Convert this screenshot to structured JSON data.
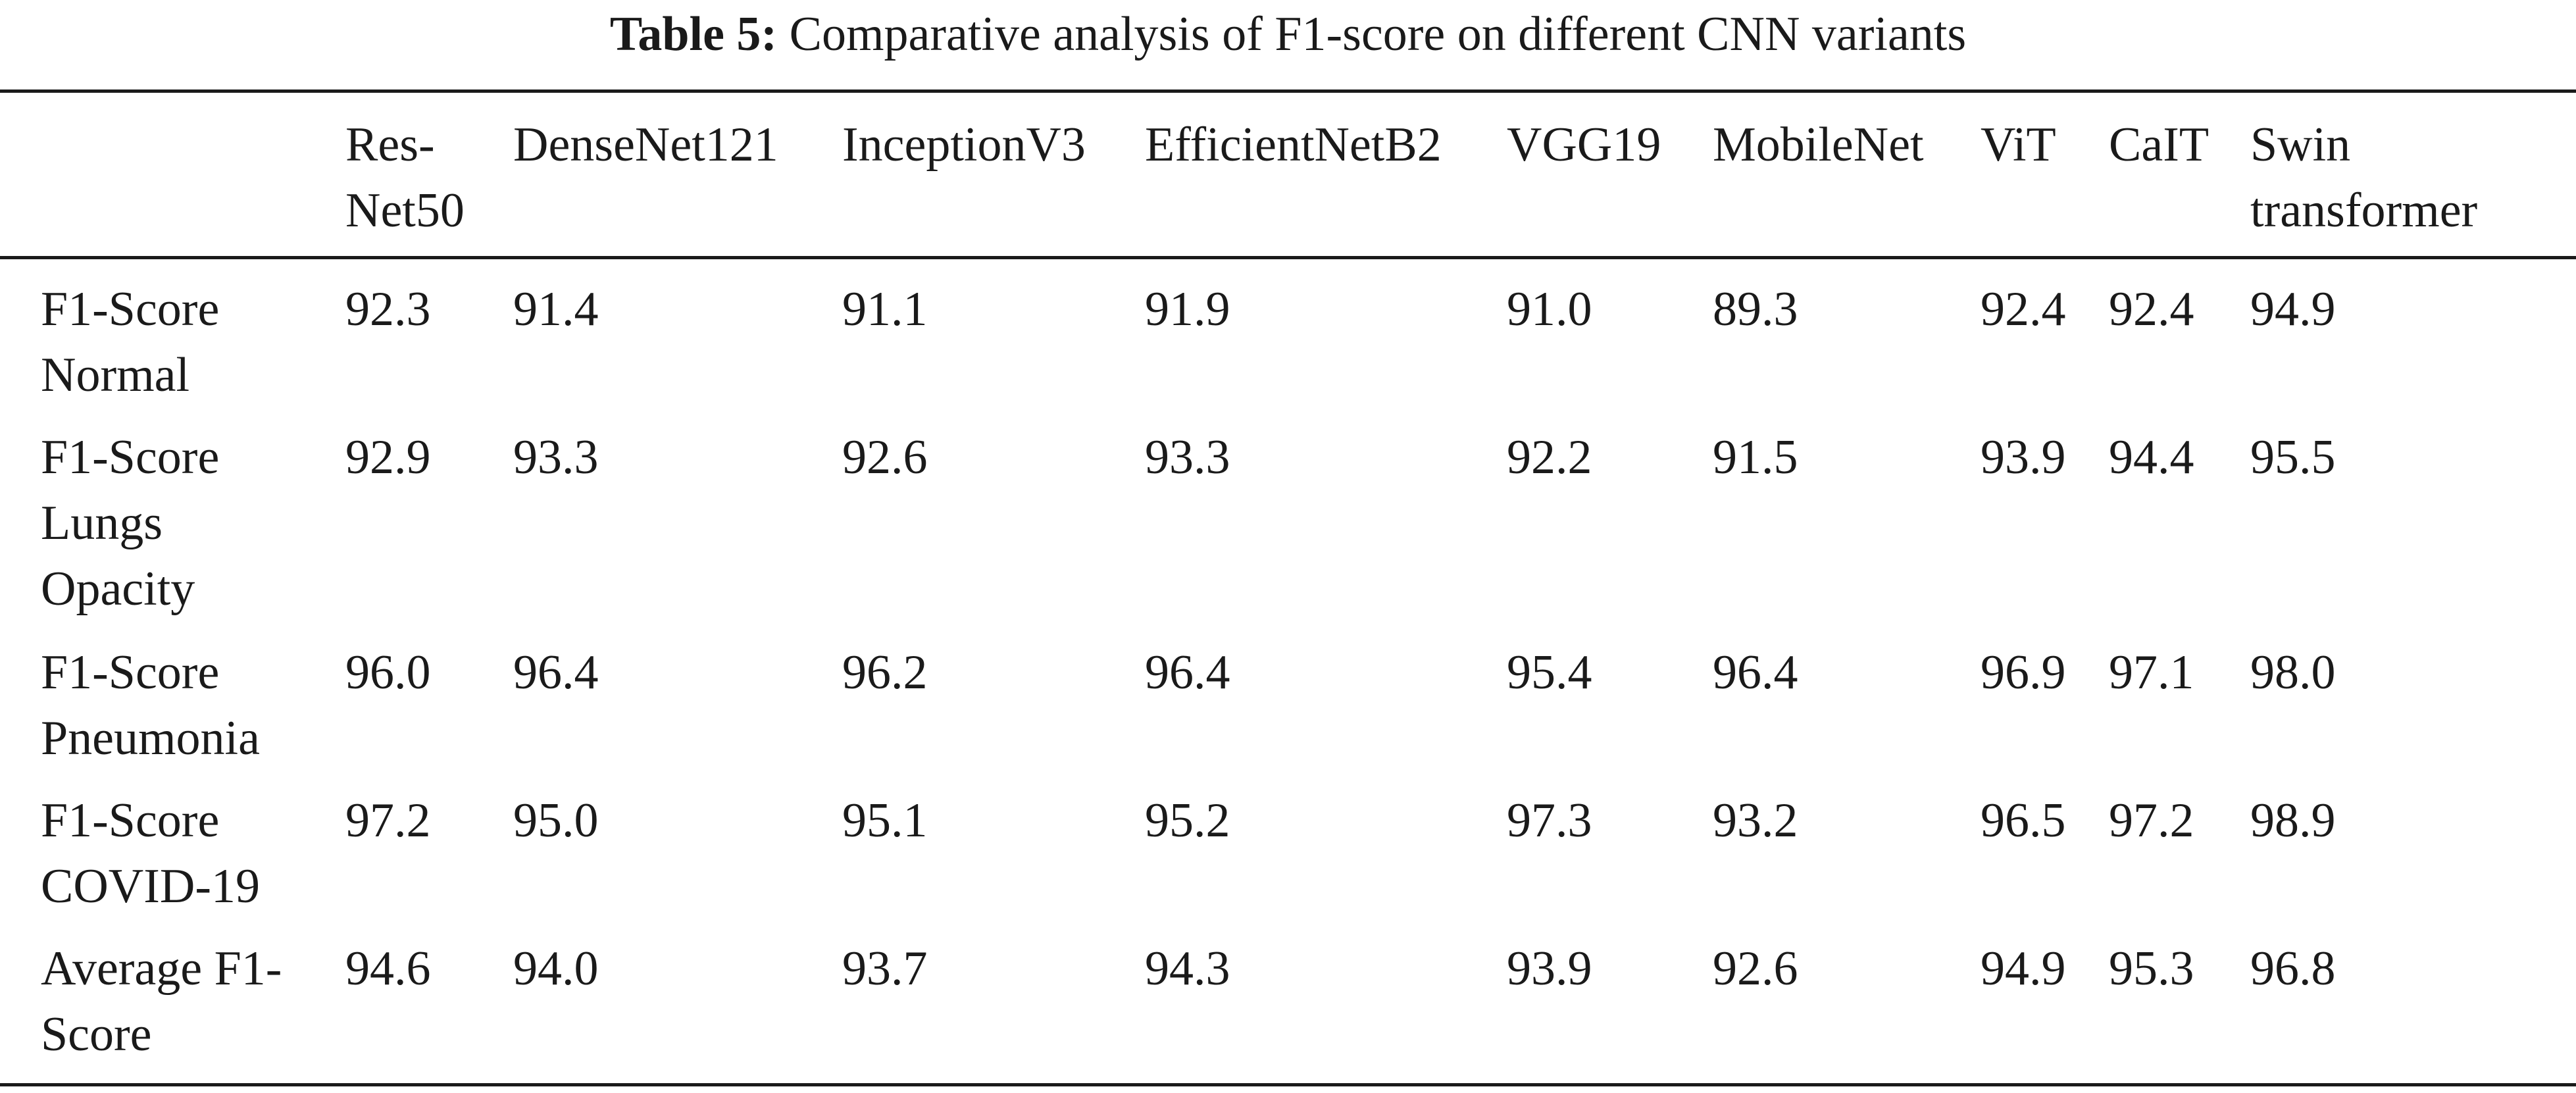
{
  "caption": {
    "label": "Table 5:",
    "text": " Comparative analysis of F1-score on different CNN variants"
  },
  "table": {
    "headers": [
      [],
      [
        "Res-",
        "Net50"
      ],
      [
        "DenseNet121"
      ],
      [
        "InceptionV3"
      ],
      [
        "EfficientNetB2"
      ],
      [
        "VGG19"
      ],
      [
        "MobileNet"
      ],
      [
        "ViT"
      ],
      [
        "CaIT"
      ],
      [
        "Swin",
        "transformer"
      ]
    ],
    "rows": [
      {
        "label": [
          "F1-Score",
          "Normal"
        ],
        "values": [
          "92.3",
          "91.4",
          "91.1",
          "91.9",
          "91.0",
          "89.3",
          "92.4",
          "92.4",
          "94.9"
        ]
      },
      {
        "label": [
          "F1-Score",
          "Lungs",
          "Opacity"
        ],
        "values": [
          "92.9",
          "93.3",
          "92.6",
          "93.3",
          "92.2",
          "91.5",
          "93.9",
          "94.4",
          "95.5"
        ]
      },
      {
        "label": [
          "F1-Score",
          "Pneumonia"
        ],
        "values": [
          "96.0",
          "96.4",
          "96.2",
          "96.4",
          "95.4",
          "96.4",
          "96.9",
          "97.1",
          "98.0"
        ]
      },
      {
        "label": [
          "F1-Score",
          "COVID-19"
        ],
        "values": [
          "97.2",
          "95.0",
          "95.1",
          "95.2",
          "97.3",
          "93.2",
          "96.5",
          "97.2",
          "98.9"
        ]
      },
      {
        "label": [
          "Average F1-",
          "Score"
        ],
        "values": [
          "94.6",
          "94.0",
          "93.7",
          "94.3",
          "93.9",
          "92.6",
          "94.9",
          "95.3",
          "96.8"
        ]
      }
    ]
  }
}
